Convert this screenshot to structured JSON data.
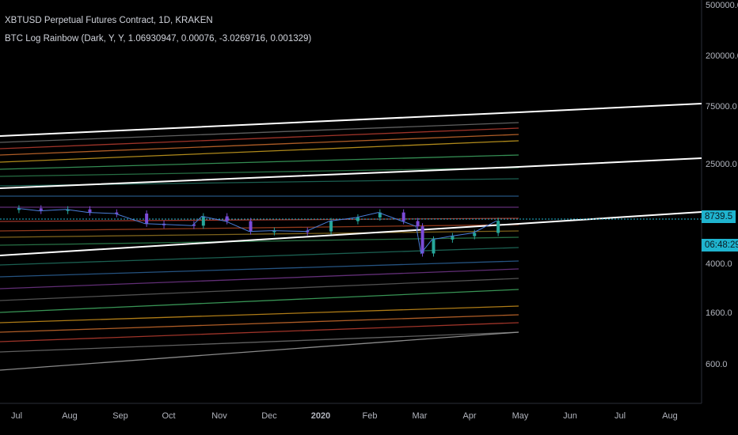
{
  "header": {
    "symbol_line": "XBTUSD Perpetual Futures Contract, 1D, KRAKEN",
    "indicator_line": "BTC Log Rainbow (Dark, Y, Y, 1.06930947, 0.00076, -3.0269716, 0.001329)"
  },
  "price_tag": {
    "price": "8739.5",
    "countdown": "06:48:29"
  },
  "colors": {
    "accent": "#1fb4cf",
    "background": "#000000"
  },
  "chart_data": {
    "type": "line",
    "title": "",
    "xlabel": "",
    "ylabel": "",
    "y_scale": "log",
    "x_ticks": [
      "Jul",
      "Aug",
      "Sep",
      "Oct",
      "Nov",
      "Dec",
      "2020",
      "Feb",
      "Mar",
      "Apr",
      "May",
      "Jun",
      "Jul",
      "Aug"
    ],
    "y_ticks": [
      "500000.0",
      "200000.0",
      "75000.0",
      "25000.0",
      "4000.0",
      "1600.0",
      "600.0"
    ],
    "grid": false,
    "legend": "none",
    "rainbow_band_colors": [
      "#888888",
      "#c0392b",
      "#d35400",
      "#d4a017",
      "#2ecc71",
      "#27ae60",
      "#1e8449",
      "#2980b9",
      "#8e44ad",
      "#c0392b",
      "#d35400",
      "#d4a017",
      "#2ecc71",
      "#1e8449",
      "#2980b9",
      "#8e44ad",
      "#777777"
    ],
    "series": [
      {
        "type": "candlestick",
        "x": [
          "2019-07-01",
          "2019-07-15",
          "2019-08-01",
          "2019-08-15",
          "2019-09-01",
          "2019-09-20",
          "2019-10-01",
          "2019-10-20",
          "2019-10-26",
          "2019-11-10",
          "2019-11-25",
          "2019-12-10",
          "2019-12-31",
          "2020-01-15",
          "2020-02-01",
          "2020-02-15",
          "2020-03-01",
          "2020-03-10",
          "2020-03-13",
          "2020-03-20",
          "2020-04-01",
          "2020-04-15",
          "2020-04-30"
        ],
        "close": [
          11000,
          10500,
          10800,
          10200,
          10000,
          8300,
          8200,
          8000,
          9500,
          8700,
          7200,
          7300,
          7200,
          8700,
          9300,
          10200,
          8700,
          7900,
          4800,
          6200,
          6600,
          7000,
          8739.5
        ]
      }
    ]
  }
}
